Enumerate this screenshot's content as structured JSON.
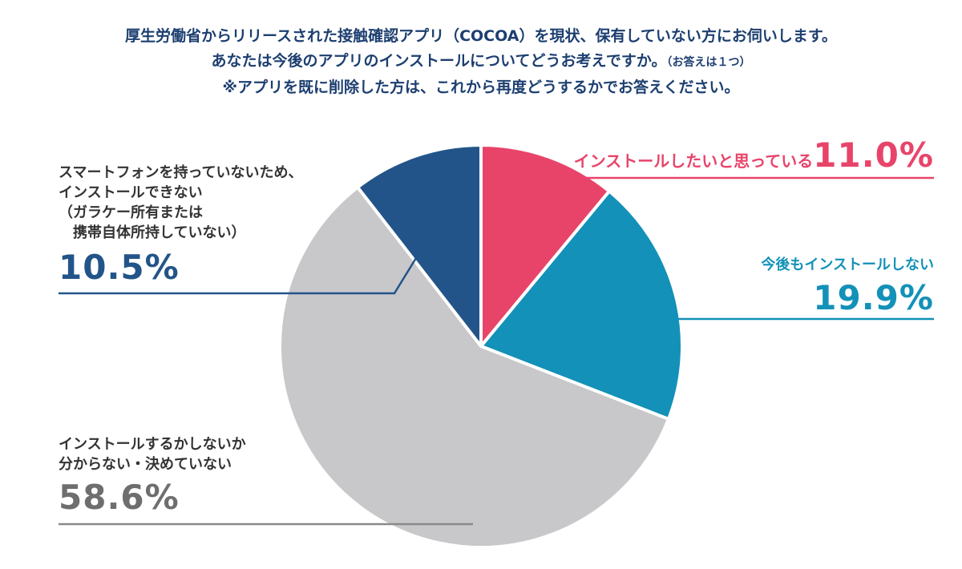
{
  "title": {
    "line1": "厚生労働省からリリースされた接触確認アプリ（COCOA）を現状、保有していない方にお伺いします。",
    "line2_main": "あなたは今後のアプリのインストールについてどうお考えですか。",
    "line2_note": "（お答えは１つ）",
    "line3": "※アプリを既に削除した方は、これから再度どうするかでお答えください。"
  },
  "colors": {
    "install": "#e8446a",
    "not_install": "#1391b8",
    "undecided": "#c8c8ca",
    "no_smartphone": "#235489",
    "undecided_text": "#6e6e6e"
  },
  "chart_data": {
    "type": "pie",
    "unit": "%",
    "start": "12 o'clock",
    "direction": "clockwise",
    "slices": [
      {
        "label": "インストールしたいと思っている",
        "value": 11.0,
        "display": "11.0%",
        "color": "#e8446a"
      },
      {
        "label": "今後もインストールしない",
        "value": 19.9,
        "display": "19.9%",
        "color": "#1391b8"
      },
      {
        "label_lines": [
          "インストールするかしないか",
          "分からない・決めていない"
        ],
        "value": 58.6,
        "display": "58.6%",
        "color": "#c8c8ca"
      },
      {
        "label_lines": [
          "スマートフォンを持っていないため、",
          "インストールできない",
          "（ガラケー所有または",
          "　携帯自体所持していない）"
        ],
        "value": 10.5,
        "display": "10.5%",
        "color": "#235489"
      }
    ]
  }
}
